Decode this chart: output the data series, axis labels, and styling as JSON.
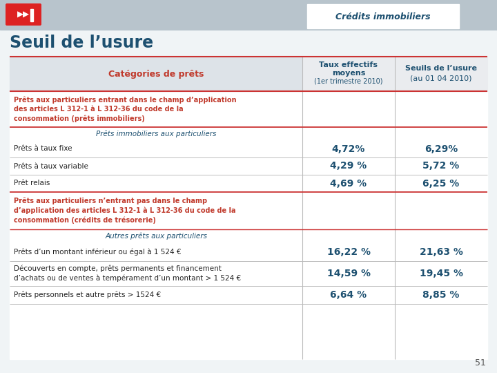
{
  "page_title": "Seuil de l’usure",
  "header_label": "Crédits immobiliers",
  "col1_header": "Catégories de prêts",
  "col2_header_line1": "Taux effectifs",
  "col2_header_line2": "moyens",
  "col2_header_line3": "(1er trimestre 2010)",
  "col3_header_line1": "Seuils de l’usure",
  "col3_header_line2": "(au 01 04 2010)",
  "section1_title": "Prêts aux particuliers entrant dans le champ d’application\ndes articles L 312-1 à L 312-36 du code de la\nconsommation (prêts immobiliers)",
  "sub_italic1": "Prêts immobiliers aux particuliers",
  "row1_label": "Prêts à taux fixe",
  "row1_val1": "4,72%",
  "row1_val2": "6,29%",
  "row2_label": "Prêts à taux variable",
  "row2_val1": "4,29 %",
  "row2_val2": "5,72 %",
  "row3_label": "Prêt relais",
  "row3_val1": "4,69 %",
  "row3_val2": "6,25 %",
  "section2_title": "Prêts aux particuliers n’entrant pas dans le champ\nd’application des articles L 312-1 à L 312-36 du code de la\nconsommation (crédits de trésorerie)",
  "sub_italic2": "Autres prêts aux particuliers",
  "row4_label": "Prêts d’un montant inférieur ou égal à 1 524 €",
  "row4_val1": "16,22 %",
  "row4_val2": "21,63 %",
  "row5_label": "Découverts en compte, prêts permanents et financement\nd’achats ou de ventes à tempérament d’un montant > 1 524 €",
  "row5_val1": "14,59 %",
  "row5_val2": "19,45 %",
  "row6_label": "Prêts personnels et autre prêts > 1524 €",
  "row6_val1": "6,64 %",
  "row6_val2": "8,85 %",
  "page_num": "51",
  "top_bar_color": "#b8c4cc",
  "page_bg": "#f0f4f6",
  "white": "#ffffff",
  "dark_blue": "#1d5070",
  "red_text": "#c0392b",
  "banner_bg": "#dde3e8",
  "hdr_col1_bg": "#dde3e8",
  "hdr_col23_bg": "#eaecef",
  "line_red": "#cc3333",
  "line_gray": "#bbbbbb",
  "body_text": "#222222"
}
